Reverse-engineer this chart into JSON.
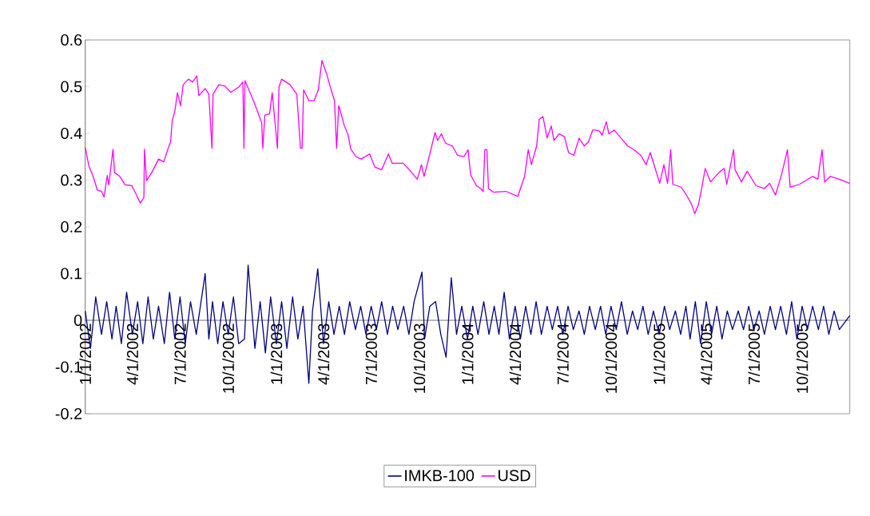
{
  "chart_data": {
    "type": "line",
    "xlim": [
      "2002-01-01",
      "2005-12-31"
    ],
    "xticks": [
      {
        "value": "2002-01-01",
        "label": "1/1/2002"
      },
      {
        "value": "2002-04-01",
        "label": "4/1/2002"
      },
      {
        "value": "2002-07-01",
        "label": "7/1/2002"
      },
      {
        "value": "2002-10-01",
        "label": "10/1/2002"
      },
      {
        "value": "2003-01-01",
        "label": "1/1/2003"
      },
      {
        "value": "2003-04-01",
        "label": "4/1/2003"
      },
      {
        "value": "2003-07-01",
        "label": "7/1/2003"
      },
      {
        "value": "2003-10-01",
        "label": "10/1/2003"
      },
      {
        "value": "2004-01-01",
        "label": "1/1/2004"
      },
      {
        "value": "2004-04-01",
        "label": "4/1/2004"
      },
      {
        "value": "2004-07-01",
        "label": "7/1/2004"
      },
      {
        "value": "2004-10-01",
        "label": "10/1/2004"
      },
      {
        "value": "2005-01-01",
        "label": "1/1/2005"
      },
      {
        "value": "2005-04-01",
        "label": "4/1/2005"
      },
      {
        "value": "2005-07-01",
        "label": "7/1/2005"
      },
      {
        "value": "2005-10-01",
        "label": "10/1/2005"
      }
    ],
    "ylim": [
      -0.2,
      0.6
    ],
    "yticks": [
      {
        "value": -0.2,
        "label": "-0.2"
      },
      {
        "value": -0.1,
        "label": "-0.1"
      },
      {
        "value": 0,
        "label": "0"
      },
      {
        "value": 0.1,
        "label": "0.1"
      },
      {
        "value": 0.2,
        "label": "0.2"
      },
      {
        "value": 0.3,
        "label": "0.3"
      },
      {
        "value": 0.4,
        "label": "0.4"
      },
      {
        "value": 0.5,
        "label": "0.5"
      },
      {
        "value": 0.6,
        "label": "0.6"
      }
    ],
    "grid": false,
    "legend": "bottom",
    "marker": "none",
    "line_style": "solid",
    "series": [
      {
        "name": "IMKB-100",
        "color": "#000080",
        "x": [
          "2002-01-01",
          "2002-01-11",
          "2002-01-21",
          "2002-02-01",
          "2002-02-11",
          "2002-02-21",
          "2002-03-01",
          "2002-03-11",
          "2002-03-21",
          "2002-04-01",
          "2002-04-11",
          "2002-04-21",
          "2002-05-01",
          "2002-05-11",
          "2002-05-21",
          "2002-06-01",
          "2002-06-11",
          "2002-06-21",
          "2002-07-01",
          "2002-07-11",
          "2002-07-21",
          "2002-08-01",
          "2002-08-18",
          "2002-08-25",
          "2002-09-01",
          "2002-09-11",
          "2002-09-21",
          "2002-10-01",
          "2002-10-11",
          "2002-10-21",
          "2002-11-01",
          "2002-11-08",
          "2002-11-21",
          "2002-12-01",
          "2002-12-11",
          "2002-12-21",
          "2003-01-01",
          "2003-01-11",
          "2003-01-21",
          "2003-02-01",
          "2003-02-11",
          "2003-02-21",
          "2003-03-04",
          "2003-03-11",
          "2003-03-21",
          "2003-04-01",
          "2003-04-11",
          "2003-04-21",
          "2003-05-01",
          "2003-05-11",
          "2003-05-21",
          "2003-06-01",
          "2003-06-11",
          "2003-06-21",
          "2003-07-01",
          "2003-07-11",
          "2003-07-21",
          "2003-08-01",
          "2003-08-11",
          "2003-08-21",
          "2003-09-01",
          "2003-09-11",
          "2003-09-21",
          "2003-10-06",
          "2003-10-11",
          "2003-10-21",
          "2003-11-01",
          "2003-11-11",
          "2003-11-21",
          "2003-12-01",
          "2003-12-11",
          "2003-12-21",
          "2004-01-01",
          "2004-01-11",
          "2004-01-21",
          "2004-02-01",
          "2004-02-11",
          "2004-02-21",
          "2004-03-01",
          "2004-03-11",
          "2004-03-21",
          "2004-04-01",
          "2004-04-11",
          "2004-04-21",
          "2004-05-01",
          "2004-05-11",
          "2004-05-21",
          "2004-06-01",
          "2004-06-11",
          "2004-06-21",
          "2004-07-01",
          "2004-07-11",
          "2004-07-21",
          "2004-08-01",
          "2004-08-11",
          "2004-08-21",
          "2004-09-01",
          "2004-09-11",
          "2004-09-21",
          "2004-10-01",
          "2004-10-11",
          "2004-10-21",
          "2004-11-01",
          "2004-11-11",
          "2004-11-21",
          "2004-12-01",
          "2004-12-11",
          "2004-12-21",
          "2005-01-01",
          "2005-01-11",
          "2005-01-21",
          "2005-02-01",
          "2005-02-11",
          "2005-02-21",
          "2005-03-01",
          "2005-03-11",
          "2005-03-21",
          "2005-04-01",
          "2005-04-11",
          "2005-04-21",
          "2005-05-01",
          "2005-05-11",
          "2005-05-21",
          "2005-06-01",
          "2005-06-11",
          "2005-06-21",
          "2005-07-01",
          "2005-07-11",
          "2005-07-21",
          "2005-08-01",
          "2005-08-11",
          "2005-08-21",
          "2005-09-01",
          "2005-09-11",
          "2005-09-21",
          "2005-10-01",
          "2005-10-11",
          "2005-10-21",
          "2005-11-01",
          "2005-11-11",
          "2005-11-21",
          "2005-12-01",
          "2005-12-11",
          "2005-12-31"
        ],
        "values": [
          0.02,
          -0.06,
          0.05,
          -0.03,
          0.04,
          -0.04,
          0.03,
          -0.05,
          0.06,
          -0.03,
          0.04,
          -0.05,
          0.05,
          -0.04,
          0.03,
          -0.05,
          0.06,
          -0.04,
          0.05,
          -0.05,
          0.04,
          -0.03,
          0.1,
          -0.04,
          0.04,
          -0.05,
          0.04,
          -0.03,
          0.05,
          -0.05,
          -0.04,
          0.118,
          -0.06,
          0.04,
          -0.07,
          0.05,
          -0.05,
          0.04,
          -0.06,
          0.05,
          -0.04,
          0.03,
          -0.135,
          0.02,
          0.11,
          -0.05,
          0.04,
          -0.03,
          0.03,
          -0.03,
          0.04,
          -0.02,
          0.03,
          -0.03,
          0.03,
          -0.02,
          0.04,
          -0.03,
          0.03,
          -0.02,
          0.03,
          -0.03,
          0.04,
          0.103,
          -0.04,
          0.03,
          0.04,
          -0.03,
          -0.079,
          0.091,
          -0.03,
          0.03,
          -0.04,
          0.03,
          -0.03,
          0.04,
          -0.03,
          0.03,
          -0.03,
          0.06,
          -0.04,
          0.03,
          -0.04,
          0.03,
          -0.03,
          0.04,
          -0.03,
          0.03,
          -0.02,
          0.03,
          -0.03,
          0.03,
          -0.02,
          0.02,
          -0.03,
          0.03,
          -0.02,
          0.03,
          -0.03,
          0.03,
          -0.02,
          0.04,
          -0.03,
          0.02,
          -0.02,
          0.03,
          -0.03,
          0.02,
          -0.03,
          0.03,
          -0.02,
          0.02,
          -0.03,
          0.03,
          -0.04,
          0.04,
          -0.05,
          0.04,
          -0.03,
          0.03,
          -0.04,
          0.02,
          -0.02,
          0.02,
          -0.02,
          0.03,
          -0.02,
          0.02,
          -0.03,
          0.03,
          -0.02,
          0.03,
          -0.03,
          0.04,
          -0.04,
          0.03,
          -0.02,
          0.03,
          -0.02,
          0.03,
          -0.03,
          0.02,
          -0.02,
          0.01
        ]
      },
      {
        "name": "USD",
        "color": "#ff00ff",
        "x": [
          "2002-01-01",
          "2002-01-08",
          "2002-01-16",
          "2002-01-24",
          "2002-02-01",
          "2002-02-06",
          "2002-02-12",
          "2002-02-15",
          "2002-02-23",
          "2002-02-26",
          "2002-03-08",
          "2002-03-18",
          "2002-03-31",
          "2002-04-08",
          "2002-04-16",
          "2002-04-23",
          "2002-04-24",
          "2002-04-28",
          "2002-05-08",
          "2002-05-21",
          "2002-05-31",
          "2002-06-08",
          "2002-06-13",
          "2002-06-16",
          "2002-06-21",
          "2002-06-26",
          "2002-07-02",
          "2002-07-07",
          "2002-07-17",
          "2002-07-25",
          "2002-08-02",
          "2002-08-06",
          "2002-08-18",
          "2002-08-25",
          "2002-08-31",
          "2002-09-02",
          "2002-09-13",
          "2002-09-25",
          "2002-10-06",
          "2002-10-21",
          "2002-10-29",
          "2002-10-31",
          "2002-11-02",
          "2002-11-16",
          "2002-11-26",
          "2002-12-04",
          "2002-12-06",
          "2002-12-10",
          "2002-12-19",
          "2002-12-24",
          "2003-01-03",
          "2003-01-06",
          "2003-01-11",
          "2003-01-27",
          "2003-02-09",
          "2003-02-16",
          "2003-02-19",
          "2003-02-22",
          "2003-03-04",
          "2003-03-14",
          "2003-03-22",
          "2003-03-29",
          "2003-04-07",
          "2003-04-14",
          "2003-04-22",
          "2003-04-26",
          "2003-04-30",
          "2003-05-02",
          "2003-05-10",
          "2003-05-18",
          "2003-05-23",
          "2003-06-02",
          "2003-06-12",
          "2003-06-28",
          "2003-07-08",
          "2003-07-21",
          "2003-08-03",
          "2003-08-10",
          "2003-08-31",
          "2003-09-12",
          "2003-09-27",
          "2003-10-05",
          "2003-10-10",
          "2003-10-18",
          "2003-10-26",
          "2003-10-31",
          "2003-11-05",
          "2003-11-12",
          "2003-11-20",
          "2003-12-03",
          "2003-12-13",
          "2003-12-25",
          "2004-01-02",
          "2004-01-07",
          "2004-01-18",
          "2004-01-26",
          "2004-01-31",
          "2004-02-03",
          "2004-02-07",
          "2004-02-10",
          "2004-02-20",
          "2004-03-14",
          "2004-04-06",
          "2004-04-19",
          "2004-04-26",
          "2004-05-02",
          "2004-05-12",
          "2004-05-17",
          "2004-05-24",
          "2004-06-01",
          "2004-06-09",
          "2004-06-14",
          "2004-06-24",
          "2004-07-04",
          "2004-07-12",
          "2004-07-22",
          "2004-08-01",
          "2004-08-11",
          "2004-08-19",
          "2004-08-27",
          "2004-09-02",
          "2004-09-09",
          "2004-09-14",
          "2004-09-22",
          "2004-09-27",
          "2004-10-07",
          "2004-10-20",
          "2004-11-02",
          "2004-11-14",
          "2004-11-27",
          "2004-12-07",
          "2004-12-15",
          "2004-12-23",
          "2005-01-02",
          "2005-01-10",
          "2005-01-17",
          "2005-01-23",
          "2005-01-27",
          "2005-02-12",
          "2005-02-22",
          "2005-03-04",
          "2005-03-10",
          "2005-03-17",
          "2005-03-22",
          "2005-03-30",
          "2005-04-09",
          "2005-04-25",
          "2005-05-05",
          "2005-05-10",
          "2005-05-23",
          "2005-05-26",
          "2005-06-07",
          "2005-06-18",
          "2005-07-05",
          "2005-07-21",
          "2005-07-31",
          "2005-08-11",
          "2005-08-23",
          "2005-09-03",
          "2005-09-08",
          "2005-09-26",
          "2005-10-21",
          "2005-10-31",
          "2005-11-08",
          "2005-11-13",
          "2005-11-24",
          "2005-12-11",
          "2005-12-31"
        ],
        "values": [
          0.37,
          0.33,
          0.308,
          0.279,
          0.276,
          0.264,
          0.31,
          0.29,
          0.366,
          0.316,
          0.308,
          0.29,
          0.288,
          0.27,
          0.251,
          0.262,
          0.366,
          0.299,
          0.316,
          0.345,
          0.339,
          0.367,
          0.382,
          0.427,
          0.447,
          0.487,
          0.459,
          0.504,
          0.516,
          0.51,
          0.523,
          0.481,
          0.496,
          0.484,
          0.368,
          0.484,
          0.504,
          0.501,
          0.488,
          0.499,
          0.51,
          0.368,
          0.513,
          0.476,
          0.447,
          0.422,
          0.368,
          0.439,
          0.442,
          0.487,
          0.368,
          0.499,
          0.516,
          0.504,
          0.484,
          0.368,
          0.368,
          0.493,
          0.47,
          0.47,
          0.493,
          0.556,
          0.527,
          0.499,
          0.47,
          0.368,
          0.459,
          0.453,
          0.419,
          0.396,
          0.367,
          0.35,
          0.345,
          0.356,
          0.328,
          0.322,
          0.356,
          0.336,
          0.336,
          0.322,
          0.302,
          0.333,
          0.308,
          0.342,
          0.379,
          0.402,
          0.385,
          0.399,
          0.379,
          0.373,
          0.353,
          0.35,
          0.365,
          0.311,
          0.288,
          0.282,
          0.276,
          0.365,
          0.365,
          0.282,
          0.274,
          0.276,
          0.265,
          0.308,
          0.365,
          0.333,
          0.373,
          0.43,
          0.436,
          0.39,
          0.416,
          0.385,
          0.399,
          0.393,
          0.359,
          0.353,
          0.39,
          0.373,
          0.382,
          0.407,
          0.407,
          0.405,
          0.396,
          0.425,
          0.399,
          0.407,
          0.39,
          0.373,
          0.365,
          0.353,
          0.333,
          0.359,
          0.33,
          0.293,
          0.333,
          0.293,
          0.365,
          0.291,
          0.285,
          0.268,
          0.248,
          0.228,
          0.248,
          0.276,
          0.325,
          0.296,
          0.316,
          0.325,
          0.291,
          0.365,
          0.322,
          0.296,
          0.319,
          0.288,
          0.282,
          0.293,
          0.268,
          0.313,
          0.365,
          0.285,
          0.291,
          0.308,
          0.302,
          0.365,
          0.296,
          0.308,
          0.302,
          0.293
        ]
      }
    ]
  }
}
